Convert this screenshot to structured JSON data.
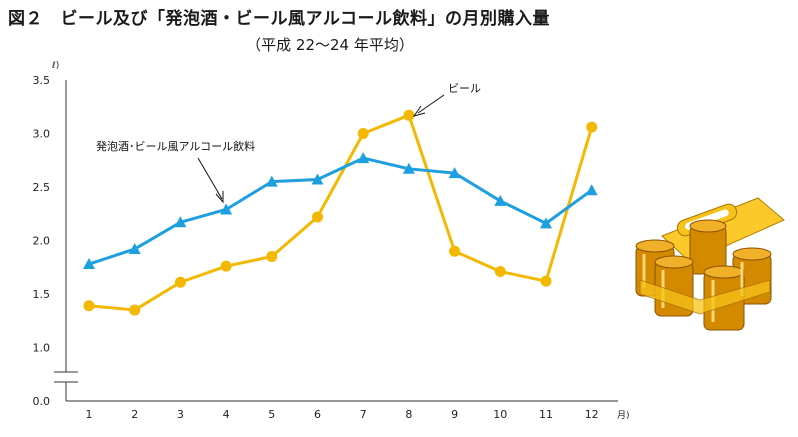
{
  "chart_data": {
    "type": "line",
    "title": "図２　ビール及び「発泡酒・ビール風アルコール飲料」の月別購入量",
    "subtitle": "（平成 22～24 年平均）",
    "y_unit": "ℓ)",
    "x_unit": "月)",
    "categories": [
      "1",
      "2",
      "3",
      "4",
      "5",
      "6",
      "7",
      "8",
      "9",
      "10",
      "11",
      "12"
    ],
    "ylim": [
      0,
      3.5
    ],
    "y_ticks": [
      "0.0",
      "1.0",
      "1.5",
      "2.0",
      "2.5",
      "3.0",
      "3.5"
    ],
    "axis_break": true,
    "grid": false,
    "series": [
      {
        "name": "ビール",
        "color": "#f5b800",
        "marker": "circle",
        "values": [
          1.39,
          1.35,
          1.61,
          1.76,
          1.85,
          2.22,
          3.0,
          3.17,
          1.9,
          1.71,
          1.62,
          3.06
        ]
      },
      {
        "name": "発泡酒･ビール風アルコール飲料",
        "color": "#1ea0e0",
        "marker": "triangle",
        "values": [
          1.78,
          1.92,
          2.17,
          2.29,
          2.55,
          2.57,
          2.77,
          2.67,
          2.63,
          2.37,
          2.16,
          2.47
        ]
      }
    ],
    "annotations": [
      "ビール",
      "発泡酒･ビール風アルコール飲料"
    ]
  },
  "illustration": {
    "name": "beer-cans-in-carrier",
    "color": "#f2b400"
  }
}
